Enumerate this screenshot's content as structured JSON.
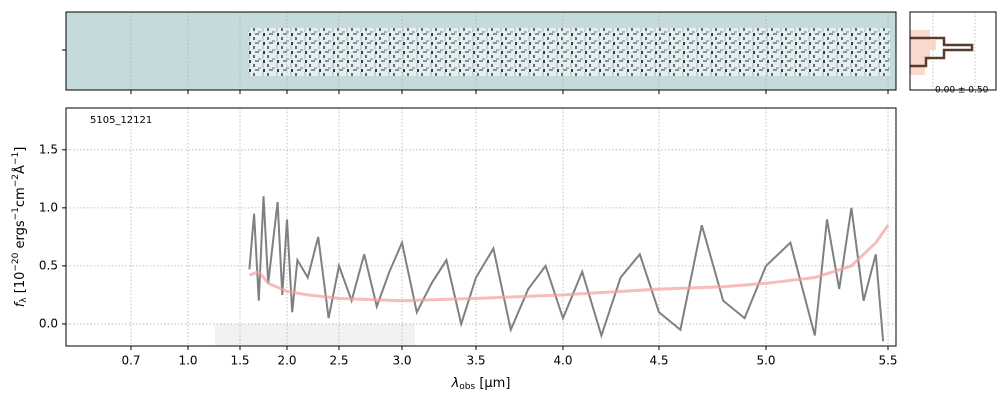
{
  "chart_data": {
    "type": "line",
    "annotation": "5105_12121",
    "profile_label": "0.00 ± 0.50",
    "xlabel": {
      "symbol": "λ",
      "sub": "obs",
      "unit": " [μm]"
    },
    "ylabel": {
      "symbol": "f",
      "sub": "λ",
      "open": " [10",
      "exp1": "−20",
      "mid1": " ergs",
      "exp2": "−1",
      "mid2": "cm",
      "exp3": "−2",
      "mid3": "Å",
      "exp4": "−1",
      "close": "]"
    },
    "xlim": [
      0.36,
      5.53
    ],
    "ylim": [
      -0.19,
      1.86
    ],
    "xticks": [
      0.7,
      {
        "value": 1.0,
        "label": "1.0"
      },
      1.5,
      {
        "value": 2.0,
        "label": "2.0"
      },
      2.5,
      {
        "value": 3.0,
        "label": "3.0"
      },
      3.5,
      {
        "value": 4.0,
        "label": "4.0"
      },
      4.5,
      {
        "value": 5.0,
        "label": "5.0"
      },
      5.5
    ],
    "yticks": [
      {
        "value": 0.0,
        "label": "0.0"
      },
      0.5,
      {
        "value": 1.0,
        "label": "1.0"
      },
      1.5
    ],
    "grid": true,
    "series": [
      {
        "name": "data",
        "color": "#808080",
        "x": [
          1.6,
          1.65,
          1.7,
          1.75,
          1.8,
          1.85,
          1.9,
          1.95,
          2.0,
          2.05,
          2.1,
          2.2,
          2.3,
          2.4,
          2.5,
          2.6,
          2.7,
          2.8,
          2.9,
          3.0,
          3.1,
          3.2,
          3.3,
          3.4,
          3.5,
          3.6,
          3.7,
          3.8,
          3.9,
          4.0,
          4.1,
          4.2,
          4.3,
          4.4,
          4.5,
          4.6,
          4.7,
          4.8,
          4.9,
          5.0,
          5.1,
          5.2,
          5.25,
          5.3,
          5.35,
          5.4,
          5.45,
          5.48
        ],
        "values": [
          0.47,
          0.95,
          0.2,
          1.1,
          0.35,
          0.7,
          1.05,
          0.25,
          0.9,
          0.1,
          0.55,
          0.4,
          0.75,
          0.05,
          0.5,
          0.2,
          0.6,
          0.15,
          0.45,
          0.7,
          0.1,
          0.35,
          0.55,
          0.0,
          0.4,
          0.65,
          -0.05,
          0.3,
          0.5,
          0.05,
          0.45,
          -0.1,
          0.4,
          0.6,
          0.1,
          -0.05,
          0.85,
          0.2,
          0.05,
          0.5,
          0.7,
          -0.1,
          0.9,
          0.3,
          1.0,
          0.2,
          0.6,
          -0.15
        ]
      },
      {
        "name": "model",
        "color": "#f4a0a0",
        "x": [
          1.6,
          1.7,
          1.8,
          2.0,
          2.2,
          2.5,
          3.0,
          3.5,
          4.0,
          4.5,
          4.8,
          5.0,
          5.2,
          5.35,
          5.45,
          5.5
        ],
        "values": [
          0.42,
          0.45,
          0.35,
          0.28,
          0.25,
          0.22,
          0.2,
          0.22,
          0.25,
          0.3,
          0.32,
          0.35,
          0.4,
          0.5,
          0.7,
          0.85
        ]
      }
    ]
  }
}
